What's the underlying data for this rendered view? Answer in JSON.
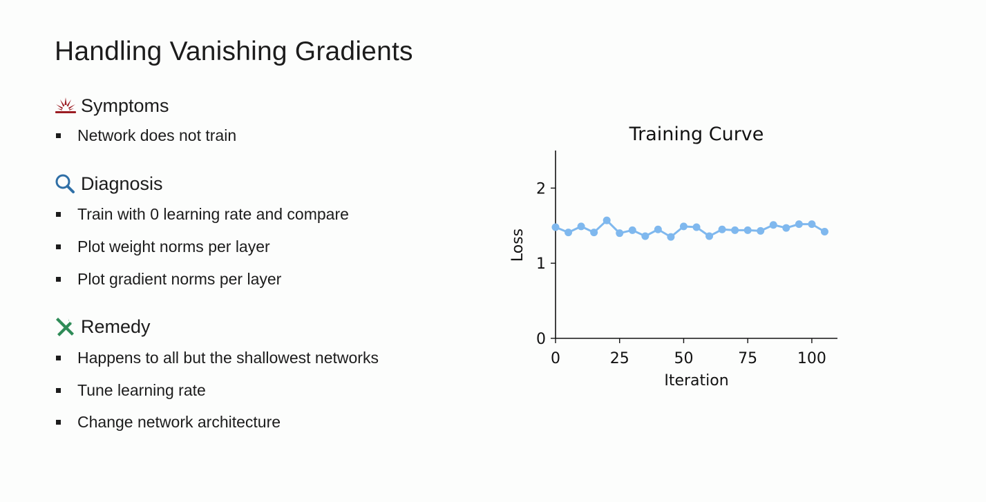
{
  "slide": {
    "title": "Handling Vanishing Gradients",
    "sections": [
      {
        "title": "Symptoms",
        "icon": "explosion-icon",
        "icon_color": "#9b1c23",
        "bullets": [
          "Network does not train"
        ]
      },
      {
        "title": "Diagnosis",
        "icon": "magnifying-glass-icon",
        "icon_color": "#2f6fa6",
        "bullets": [
          "Train with 0 learning rate and compare",
          "Plot weight norms per layer",
          "Plot gradient norms per layer"
        ]
      },
      {
        "title": "Remedy",
        "icon": "tools-icon",
        "icon_color": "#2e8b57",
        "bullets": [
          "Happens to all but the shallowest networks",
          "Tune learning rate",
          "Change network architecture"
        ]
      }
    ]
  },
  "chart_data": {
    "type": "line",
    "title": "Training Curve",
    "xlabel": "Iteration",
    "ylabel": "Loss",
    "xlim": [
      0,
      110
    ],
    "ylim": [
      0,
      2.5
    ],
    "xticks": [
      0,
      25,
      50,
      75,
      100
    ],
    "yticks": [
      0,
      1,
      2
    ],
    "grid": false,
    "color": "#7fb8ee",
    "series": [
      {
        "x": [
          0,
          5,
          10,
          15,
          20,
          25,
          30,
          35,
          40,
          45,
          50,
          55,
          60,
          65,
          70,
          75,
          80,
          85,
          90,
          95,
          100,
          105
        ],
        "y": [
          1.48,
          1.41,
          1.49,
          1.41,
          1.57,
          1.4,
          1.44,
          1.36,
          1.45,
          1.35,
          1.49,
          1.48,
          1.36,
          1.45,
          1.44,
          1.44,
          1.43,
          1.51,
          1.47,
          1.52,
          1.52,
          1.42
        ]
      }
    ]
  }
}
